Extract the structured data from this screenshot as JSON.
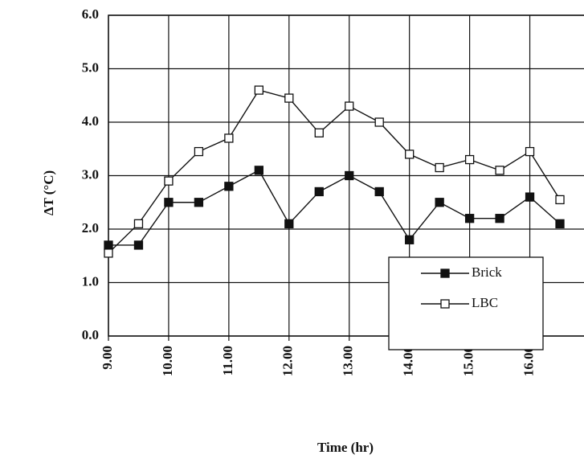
{
  "chart_data": {
    "type": "line",
    "xlabel": "Time (hr)",
    "ylabel": "ΔT (°C)",
    "x": [
      9,
      9.5,
      10,
      10.5,
      11,
      11.5,
      12,
      12.5,
      13,
      13.5,
      14,
      14.5,
      15,
      15.5,
      16,
      16.5
    ],
    "series": [
      {
        "name": "Brick",
        "color": "#111111",
        "marker": "filled-square",
        "values": [
          1.7,
          1.7,
          2.5,
          2.5,
          2.8,
          3.1,
          2.1,
          2.7,
          3.0,
          2.7,
          1.8,
          2.5,
          2.2,
          2.2,
          2.6,
          2.1
        ]
      },
      {
        "name": "LBC",
        "color": "#111111",
        "marker": "open-square",
        "values": [
          1.55,
          2.1,
          2.9,
          3.45,
          3.7,
          4.6,
          4.45,
          3.8,
          4.3,
          4.0,
          3.4,
          3.15,
          3.3,
          3.1,
          3.45,
          2.55
        ]
      }
    ],
    "xlim": [
      9,
      16.9
    ],
    "xticks": [
      {
        "value": 9,
        "label": "9.00"
      },
      {
        "value": 10,
        "label": "10.00"
      },
      {
        "value": 11,
        "label": "11.00"
      },
      {
        "value": 12,
        "label": "12.00"
      },
      {
        "value": 13,
        "label": "13.00"
      },
      {
        "value": 14,
        "label": "14.00"
      },
      {
        "value": 15,
        "label": "15.00"
      },
      {
        "value": 16,
        "label": "16.00"
      }
    ],
    "ylim": [
      0,
      6
    ],
    "yticks": [
      {
        "value": 0,
        "label": "0.0"
      },
      {
        "value": 1,
        "label": "1.0"
      },
      {
        "value": 2,
        "label": "2.0"
      },
      {
        "value": 3,
        "label": "3.0"
      },
      {
        "value": 4,
        "label": "4.0"
      },
      {
        "value": 5,
        "label": "5.0"
      },
      {
        "value": 6,
        "label": "6.0"
      }
    ],
    "grid": true,
    "legend": "lower right"
  }
}
